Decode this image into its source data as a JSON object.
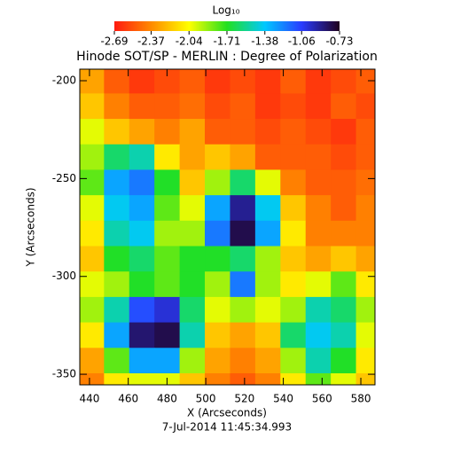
{
  "chart_data": {
    "type": "heatmap",
    "title": "Hinode SOT/SP - MERLIN : Degree of Polarization",
    "xlabel": "X (Arcseconds)",
    "ylabel": "Y (Arcseconds)",
    "footer": "7-Jul-2014 11:45:34.993",
    "colorbar_title": "Log₁₀",
    "xlim": [
      435,
      587.3
    ],
    "ylim": [
      -355.4,
      -194.1
    ],
    "xticks": [
      440,
      460,
      480,
      500,
      520,
      540,
      560,
      580
    ],
    "yticks": [
      -200,
      -250,
      -300,
      -350
    ],
    "clim": [
      -2.69,
      -0.73
    ],
    "cticks": [
      -2.69,
      -2.37,
      -2.04,
      -1.71,
      -1.38,
      -1.06,
      -0.73
    ],
    "ccolors": [
      "#ff1a10",
      "#ff8a00",
      "#ffff00",
      "#22e020",
      "#00c8ff",
      "#2a3cff",
      "#20001c"
    ],
    "x": [
      441,
      454,
      467,
      480,
      493,
      506,
      519,
      532,
      545,
      558,
      571,
      584
    ],
    "y": [
      -200,
      -213,
      -226,
      -239,
      -252,
      -265,
      -278,
      -291,
      -304,
      -317,
      -330,
      -343,
      -356
    ],
    "z": [
      [
        -2.3,
        -2.5,
        -2.6,
        -2.55,
        -2.5,
        -2.6,
        -2.55,
        -2.6,
        -2.5,
        -2.6,
        -2.55,
        -2.5
      ],
      [
        -2.2,
        -2.4,
        -2.5,
        -2.5,
        -2.45,
        -2.55,
        -2.5,
        -2.6,
        -2.55,
        -2.6,
        -2.5,
        -2.55
      ],
      [
        -2.0,
        -2.2,
        -2.3,
        -2.4,
        -2.3,
        -2.5,
        -2.5,
        -2.55,
        -2.5,
        -2.55,
        -2.6,
        -2.5
      ],
      [
        -1.9,
        -1.6,
        -1.5,
        -2.1,
        -2.3,
        -2.2,
        -2.3,
        -2.5,
        -2.5,
        -2.5,
        -2.55,
        -2.5
      ],
      [
        -1.8,
        -1.3,
        -1.2,
        -1.7,
        -2.2,
        -1.9,
        -1.6,
        -2.0,
        -2.4,
        -2.5,
        -2.5,
        -2.45
      ],
      [
        -2.0,
        -1.4,
        -1.3,
        -1.8,
        -2.0,
        -1.3,
        -0.9,
        -1.4,
        -2.2,
        -2.4,
        -2.5,
        -2.4
      ],
      [
        -2.1,
        -1.5,
        -1.4,
        -1.9,
        -1.9,
        -1.2,
        -0.8,
        -1.3,
        -2.1,
        -2.4,
        -2.4,
        -2.4
      ],
      [
        -2.2,
        -1.7,
        -1.6,
        -1.8,
        -1.7,
        -1.7,
        -1.6,
        -1.9,
        -2.2,
        -2.3,
        -2.2,
        -2.3
      ],
      [
        -2.0,
        -1.9,
        -1.7,
        -1.8,
        -1.7,
        -1.9,
        -1.2,
        -1.9,
        -2.1,
        -2.0,
        -1.8,
        -2.1
      ],
      [
        -1.9,
        -1.5,
        -1.1,
        -1.0,
        -1.6,
        -2.0,
        -1.9,
        -2.0,
        -1.9,
        -1.5,
        -1.6,
        -1.9
      ],
      [
        -2.1,
        -1.3,
        -0.85,
        -0.8,
        -1.5,
        -2.2,
        -2.3,
        -2.2,
        -1.6,
        -1.4,
        -1.5,
        -2.0
      ],
      [
        -2.3,
        -1.8,
        -1.3,
        -1.3,
        -1.9,
        -2.3,
        -2.4,
        -2.3,
        -1.9,
        -1.5,
        -1.7,
        -2.1
      ],
      [
        -2.4,
        -2.1,
        -2.0,
        -2.0,
        -2.2,
        -2.4,
        -2.5,
        -2.4,
        -2.1,
        -1.8,
        -2.0,
        -2.2
      ]
    ]
  }
}
